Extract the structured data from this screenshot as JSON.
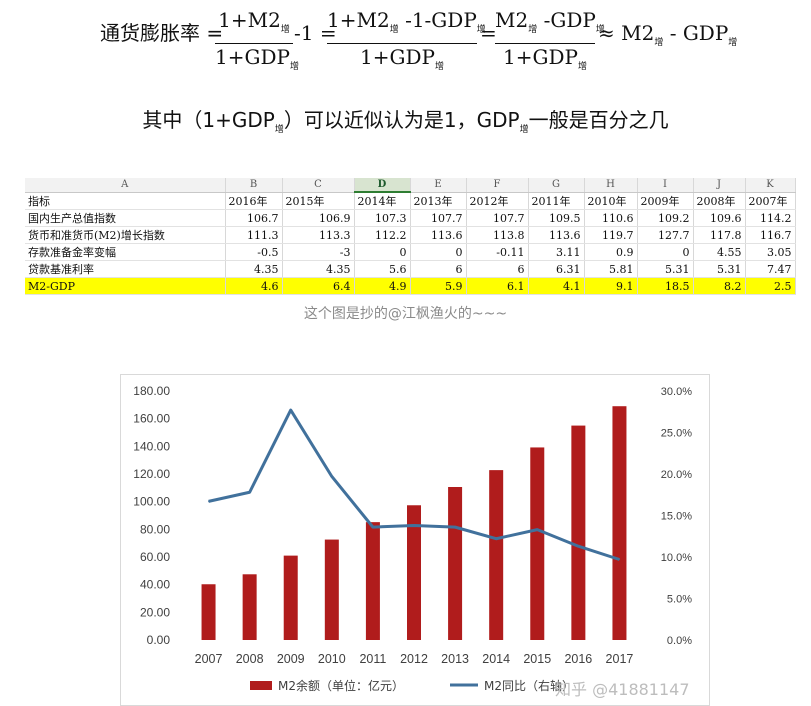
{
  "formula": {
    "lhs": "通货膨胀率 =",
    "frac1": {
      "num": "1+M2",
      "num_sub": "增",
      "den": "1+GDP",
      "den_sub": "增"
    },
    "minus1": "-1 =",
    "frac2": {
      "num_a": "1+M2",
      "num_a_sub": "增",
      "num_b": "-1-GDP",
      "num_b_sub": "增",
      "den": "1+GDP",
      "den_sub": "增"
    },
    "eq": "=",
    "frac3": {
      "num_a": "M2",
      "num_a_sub": "增",
      "num_b": "-GDP",
      "num_b_sub": "增",
      "den": "1+GDP",
      "den_sub": "增"
    },
    "approx": "≈ M2",
    "approx_sub": "增",
    "approx_tail": "- GDP",
    "approx_tail_sub": "增"
  },
  "note": {
    "a": "其中（1+GDP",
    "a_sub": "增",
    "b": "）可以近似认为是1，GDP",
    "b_sub": "增",
    "c": "一般是百分之几"
  },
  "sheet": {
    "columns": [
      "A",
      "B",
      "C",
      "D",
      "E",
      "F",
      "G",
      "H",
      "I",
      "J",
      "K"
    ],
    "selected_column": "D",
    "rows": [
      [
        "指标",
        "2016年",
        "2015年",
        "2014年",
        "2013年",
        "2012年",
        "2011年",
        "2010年",
        "2009年",
        "2008年",
        "2007年"
      ],
      [
        "国内生产总值指数",
        "106.7",
        "106.9",
        "107.3",
        "107.7",
        "107.7",
        "109.5",
        "110.6",
        "109.2",
        "109.6",
        "114.2"
      ],
      [
        "货币和准货币(M2)增长指数",
        "111.3",
        "113.3",
        "112.2",
        "113.6",
        "113.8",
        "113.6",
        "119.7",
        "127.7",
        "117.8",
        "116.7"
      ],
      [
        "存款准备金率变幅",
        "-0.5",
        "-3",
        "0",
        "0",
        "-0.11",
        "3.11",
        "0.9",
        "0",
        "4.55",
        "3.05"
      ],
      [
        "贷款基准利率",
        "4.35",
        "4.35",
        "5.6",
        "6",
        "6",
        "6.31",
        "5.81",
        "5.31",
        "5.31",
        "7.47"
      ],
      [
        "M2-GDP",
        "4.6",
        "6.4",
        "4.9",
        "5.9",
        "6.1",
        "4.1",
        "9.1",
        "18.5",
        "8.2",
        "2.5"
      ]
    ],
    "highlight_color": "#ffff00"
  },
  "caption": "这个图是抄的@江枫渔火的~~~",
  "watermark": "知乎 @41881147",
  "colors": {
    "bar": "#b01c1c",
    "line": "#41719c",
    "axis_text": "#404040"
  },
  "chart_data": {
    "type": "bar",
    "categories": [
      "2007",
      "2008",
      "2009",
      "2010",
      "2011",
      "2012",
      "2013",
      "2014",
      "2015",
      "2016",
      "2017"
    ],
    "series": [
      {
        "name": "M2余额（单位：亿元）",
        "type": "bar",
        "axis": "left",
        "values": [
          40.3,
          47.5,
          61.0,
          72.6,
          85.2,
          97.4,
          110.6,
          122.8,
          139.2,
          155.0,
          169.0
        ]
      },
      {
        "name": "M2同比（右轴）",
        "type": "line",
        "axis": "right",
        "values": [
          16.7,
          17.8,
          27.7,
          19.7,
          13.6,
          13.8,
          13.6,
          12.2,
          13.3,
          11.3,
          9.7
        ]
      }
    ],
    "y_left": {
      "ylim": [
        0,
        180
      ],
      "ticks": [
        "0.00",
        "20.00",
        "40.00",
        "60.00",
        "80.00",
        "100.00",
        "120.00",
        "140.00",
        "160.00",
        "180.00"
      ]
    },
    "y_right": {
      "ylim": [
        0,
        30
      ],
      "ticks": [
        "0.0%",
        "5.0%",
        "10.0%",
        "15.0%",
        "20.0%",
        "25.0%",
        "30.0%"
      ]
    },
    "grid": false,
    "legend": "bottom"
  }
}
